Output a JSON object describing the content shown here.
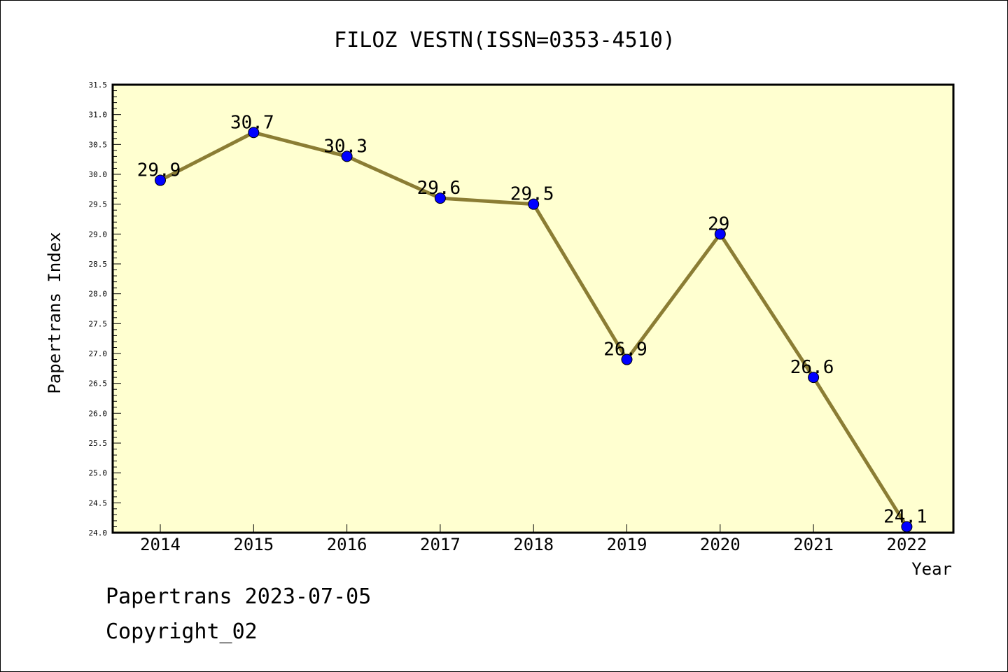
{
  "chart_data": {
    "type": "line",
    "title": "FILOZ VESTN(ISSN=0353-4510)",
    "xlabel": "Year",
    "ylabel": "Papertrans Index",
    "categories": [
      "2014",
      "2015",
      "2016",
      "2017",
      "2018",
      "2019",
      "2020",
      "2021",
      "2022"
    ],
    "values": [
      29.9,
      30.7,
      30.3,
      29.6,
      29.5,
      26.9,
      29.0,
      26.6,
      24.1
    ],
    "data_labels": [
      "29.9",
      "30.7",
      "30.3",
      "29.6",
      "29.5",
      "26.9",
      "29",
      "26.6",
      "24.1"
    ],
    "ylim": [
      24.0,
      31.5
    ],
    "yticks": [
      "24.0",
      "24.5",
      "25.0",
      "25.5",
      "26.0",
      "26.5",
      "27.0",
      "27.5",
      "28.0",
      "28.5",
      "29.0",
      "29.5",
      "30.0",
      "30.5",
      "31.0",
      "31.5"
    ],
    "grid": false,
    "colors": {
      "plot_background": "#ffffd0",
      "line": "#8b7d34",
      "marker": "#0000ff"
    }
  },
  "footer": {
    "line1": "Papertrans 2023-07-05",
    "line2": "Copyright_02"
  }
}
